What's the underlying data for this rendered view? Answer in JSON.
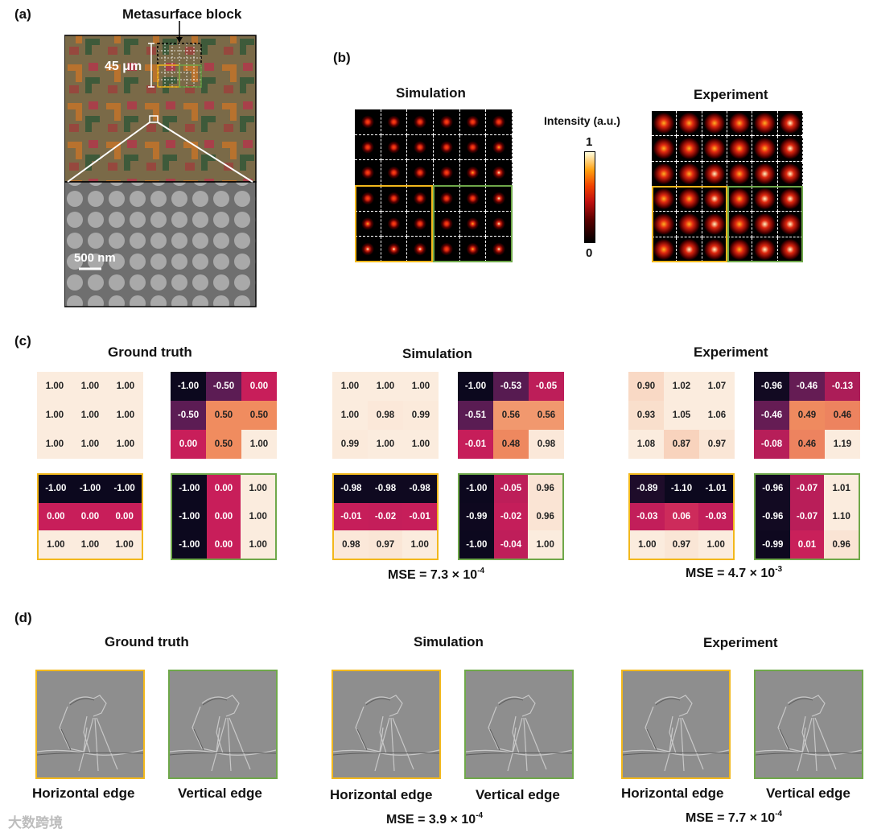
{
  "panels": {
    "a": "(a)",
    "b": "(b)",
    "c": "(c)",
    "d": "(d)"
  },
  "panel_a": {
    "block_label": "Metasurface block",
    "size_label": "45 μm",
    "scale_label": "500 nm"
  },
  "panel_b": {
    "sim_title": "Simulation",
    "exp_title": "Experiment",
    "colorbar_title": "Intensity (a.u.)",
    "colorbar_max": "1",
    "colorbar_min": "0",
    "sim_intensity": [
      [
        0.55,
        0.5,
        0.5,
        0.35,
        0.45,
        0.5
      ],
      [
        0.5,
        0.55,
        0.55,
        0.4,
        0.55,
        0.7
      ],
      [
        0.5,
        0.55,
        0.55,
        0.45,
        0.6,
        0.85
      ],
      [
        0.4,
        0.35,
        0.4,
        0.45,
        0.55,
        0.8
      ],
      [
        0.6,
        0.45,
        0.55,
        0.5,
        0.65,
        0.85
      ],
      [
        0.85,
        0.8,
        0.85,
        0.5,
        0.6,
        0.85
      ]
    ],
    "exp_intensity": [
      [
        0.6,
        0.65,
        0.75,
        0.6,
        0.65,
        0.8
      ],
      [
        0.65,
        0.7,
        0.75,
        0.65,
        0.75,
        0.85
      ],
      [
        0.7,
        0.75,
        0.8,
        0.7,
        0.8,
        0.9
      ],
      [
        0.65,
        0.7,
        0.8,
        0.65,
        0.8,
        0.9
      ],
      [
        0.7,
        0.75,
        0.85,
        0.7,
        0.8,
        0.9
      ],
      [
        0.75,
        0.8,
        0.85,
        0.7,
        0.8,
        0.9
      ]
    ]
  },
  "panel_c": {
    "gt_title": "Ground truth",
    "sim_title": "Simulation",
    "exp_title": "Experiment",
    "sim_mse_prefix": "MSE = 7.3 × 10",
    "sim_mse_exp": "-4",
    "exp_mse_prefix": "MSE = 4.7 × 10",
    "exp_mse_exp": "-3",
    "matrices": {
      "gt_top_left": [
        [
          "1.00",
          "1.00",
          "1.00"
        ],
        [
          "1.00",
          "1.00",
          "1.00"
        ],
        [
          "1.00",
          "1.00",
          "1.00"
        ]
      ],
      "gt_top_right": [
        [
          "-1.00",
          "-0.50",
          "0.00"
        ],
        [
          "-0.50",
          "0.50",
          "0.50"
        ],
        [
          "0.00",
          "0.50",
          "1.00"
        ]
      ],
      "gt_bottom_left": [
        [
          "-1.00",
          "-1.00",
          "-1.00"
        ],
        [
          "0.00",
          "0.00",
          "0.00"
        ],
        [
          "1.00",
          "1.00",
          "1.00"
        ]
      ],
      "gt_bottom_right": [
        [
          "-1.00",
          "0.00",
          "1.00"
        ],
        [
          "-1.00",
          "0.00",
          "1.00"
        ],
        [
          "-1.00",
          "0.00",
          "1.00"
        ]
      ],
      "sim_top_left": [
        [
          "1.00",
          "1.00",
          "1.00"
        ],
        [
          "1.00",
          "0.98",
          "0.99"
        ],
        [
          "0.99",
          "1.00",
          "1.00"
        ]
      ],
      "sim_top_right": [
        [
          "-1.00",
          "-0.53",
          "-0.05"
        ],
        [
          "-0.51",
          "0.56",
          "0.56"
        ],
        [
          "-0.01",
          "0.48",
          "0.98"
        ]
      ],
      "sim_bottom_left": [
        [
          "-0.98",
          "-0.98",
          "-0.98"
        ],
        [
          "-0.01",
          "-0.02",
          "-0.01"
        ],
        [
          "0.98",
          "0.97",
          "1.00"
        ]
      ],
      "sim_bottom_right": [
        [
          "-1.00",
          "-0.05",
          "0.96"
        ],
        [
          "-0.99",
          "-0.02",
          "0.96"
        ],
        [
          "-1.00",
          "-0.04",
          "1.00"
        ]
      ],
      "exp_top_left": [
        [
          "0.90",
          "1.02",
          "1.07"
        ],
        [
          "0.93",
          "1.05",
          "1.06"
        ],
        [
          "1.08",
          "0.87",
          "0.97"
        ]
      ],
      "exp_top_right": [
        [
          "-0.96",
          "-0.46",
          "-0.13"
        ],
        [
          "-0.46",
          "0.49",
          "0.46"
        ],
        [
          "-0.08",
          "0.46",
          "1.19"
        ]
      ],
      "exp_bottom_left": [
        [
          "-0.89",
          "-1.10",
          "-1.01"
        ],
        [
          "-0.03",
          "0.06",
          "-0.03"
        ],
        [
          "1.00",
          "0.97",
          "1.00"
        ]
      ],
      "exp_bottom_right": [
        [
          "-0.96",
          "-0.07",
          "1.01"
        ],
        [
          "-0.96",
          "-0.07",
          "1.10"
        ],
        [
          "-0.99",
          "0.01",
          "0.96"
        ]
      ]
    }
  },
  "panel_d": {
    "gt_title": "Ground truth",
    "sim_title": "Simulation",
    "exp_title": "Experiment",
    "horizontal_label": "Horizontal edge",
    "vertical_label": "Vertical edge",
    "sim_mse_prefix": "MSE = 3.9 × 10",
    "sim_mse_exp": "-4",
    "exp_mse_prefix": "MSE = 7.7 × 10",
    "exp_mse_exp": "-4"
  },
  "watermark": "大数跨境",
  "colors": {
    "yellow": "#f2b81c",
    "green": "#6fa84a"
  }
}
